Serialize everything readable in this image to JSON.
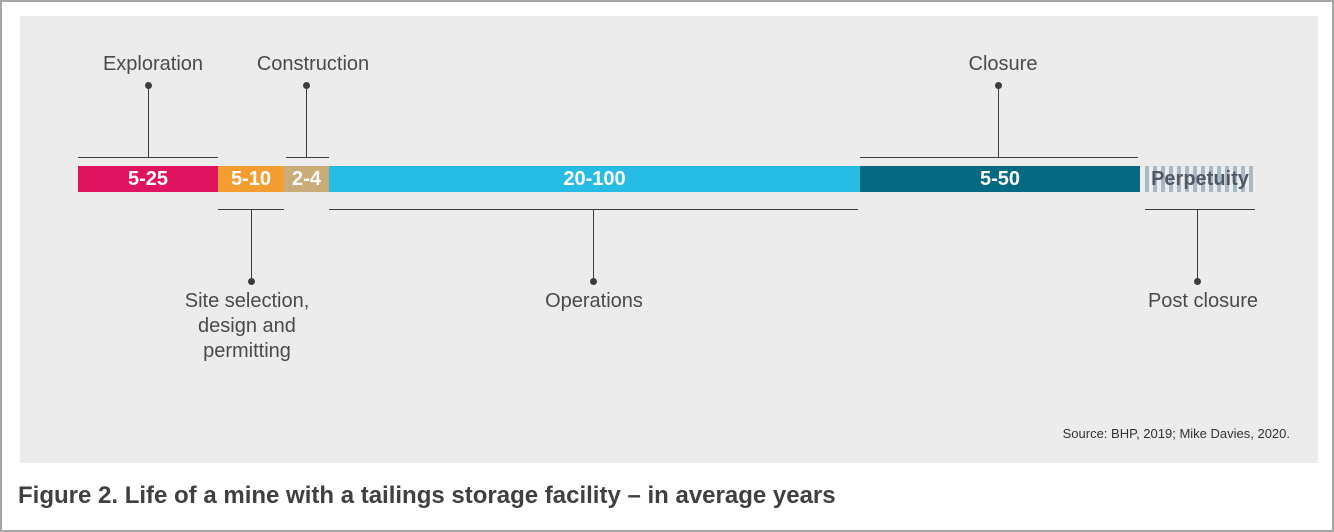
{
  "segments": [
    {
      "value": "5-25",
      "color": "#e0135f"
    },
    {
      "value": "5-10",
      "color": "#f49e32"
    },
    {
      "value": "2-4",
      "color": "#c9ac78"
    },
    {
      "value": "20-100",
      "color": "#27bce3"
    },
    {
      "value": "5-50",
      "color": "#036a81"
    },
    {
      "value": "Perpetuity",
      "color": "#a9b9c6"
    }
  ],
  "phases": {
    "exploration": "Exploration",
    "construction": "Construction",
    "closure": "Closure",
    "site_selection": "Site selection,\ndesign and\npermitting",
    "operations": "Operations",
    "post_closure": "Post closure"
  },
  "source": "Source: BHP, 2019; Mike Davies, 2020.",
  "caption": "Figure 2. Life of a mine with a tailings storage facility – in average years"
}
